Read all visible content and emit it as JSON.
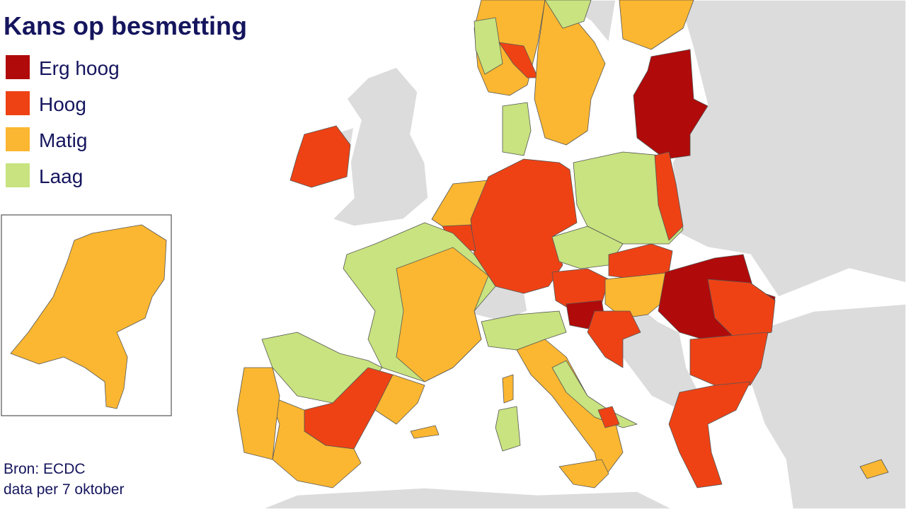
{
  "title": "Kans op besmetting",
  "legend": [
    {
      "label": "Erg hoog",
      "color": "#b00a0a"
    },
    {
      "label": "Hoog",
      "color": "#ee4215"
    },
    {
      "label": "Matig",
      "color": "#fbb731"
    },
    {
      "label": "Laag",
      "color": "#c8e37f"
    }
  ],
  "source": "Bron: ECDC",
  "date_note": "data per 7 oktober"
}
